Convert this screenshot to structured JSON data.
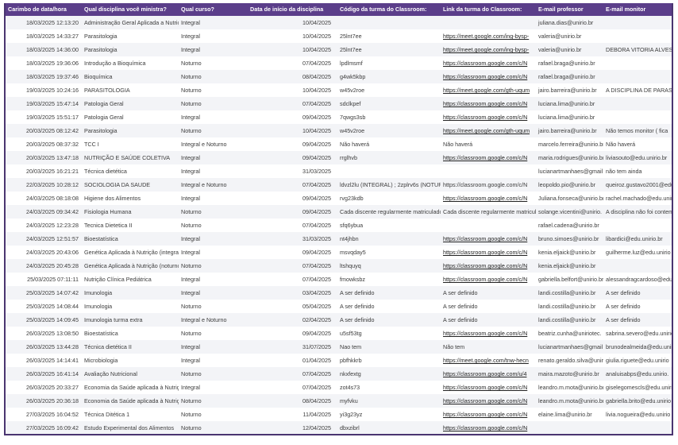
{
  "header": [
    "Carimbo de data/hora",
    "Qual disciplina você ministra?",
    "Qual curso?",
    "Data de início da disciplina",
    "Código da turma do Classroom:",
    "Link da turma do Classroom:",
    "E-mail professor",
    "E-mail monitor"
  ],
  "rows": [
    {
      "cells": [
        "18/03/2025 12:13:20",
        "Administração Geral Aplicada a Nutrição",
        "Integral",
        "10/04/2025",
        "",
        "",
        "juliana.dias@unirio.br",
        ""
      ]
    },
    {
      "cells": [
        "18/03/2025 14:33:27",
        "Parasitologia",
        "Integral",
        "10/04/2025",
        "25lnt7ee",
        "https://meet.google.com/ing-bysp-",
        "valeria@unirio.br",
        ""
      ]
    },
    {
      "cells": [
        "18/03/2025 14:36:00",
        "Parasitologia",
        "Integral",
        "10/04/2025",
        "25lnt7ee",
        "https://meet.google.com/ing-bysp-",
        "valeria@unirio.br",
        "DEBORA VITORIA ALVES"
      ]
    },
    {
      "cells": [
        "18/03/2025 19:36:06",
        "Introdução a Bioquímica",
        "Noturno",
        "07/04/2025",
        "lpdlmsmf",
        "https://classroom.google.com/c/N",
        "rafael.braga@unirio.br",
        ""
      ]
    },
    {
      "cells": [
        "18/03/2025 19:37:46",
        "Bioquímica",
        "Noturno",
        "08/04/2025",
        "g4wk5kbp",
        "https://classroom.google.com/c/N",
        "rafael.braga@unirio.br",
        ""
      ]
    },
    {
      "cells": [
        "19/03/2025 10:24:16",
        "PARASITOLOGIA",
        "Noturno",
        "10/04/2025",
        "w45v2roe",
        "https://meet.google.com/gth-uqum",
        "jairo.barreira@unirio.br",
        "A DISCIPLINA DE PARASITOLOGIA"
      ]
    },
    {
      "cells": [
        "19/03/2025 15:47:14",
        "Patologia Geral",
        "Noturno",
        "07/04/2025",
        "sdclkpef",
        "https://classroom.google.com/c/N",
        "luciana.lima@unirio.br",
        ""
      ]
    },
    {
      "cells": [
        "19/03/2025 15:51:17",
        "Patologia Geral",
        "Integral",
        "09/04/2025",
        "7qwgs3sb",
        "https://classroom.google.com/c/N",
        "luciana.lima@unirio.br",
        ""
      ]
    },
    {
      "cells": [
        "20/03/2025 08:12:42",
        "Parasitologia",
        "Noturno",
        "10/04/2025",
        "w45v2roe",
        "https://meet.google.com/gth-uqum",
        "jairo.barreira@unirio.br",
        "Não temos monitor ( fica"
      ]
    },
    {
      "cells": [
        "20/03/2025 08:37:32",
        "TCC I",
        "Integral e Noturno",
        "09/04/2025",
        "Não haverá",
        "Não haverá",
        "marcelo.ferreira@unirio.br",
        "Não haverá"
      ]
    },
    {
      "cells": [
        "20/03/2025 13:47:18",
        "NUTRIÇÃO E SAÚDE COLETIVA",
        "Integral",
        "09/04/2025",
        " rrglhvb",
        "https://classroom.google.com/c/N",
        "maria.rodrigues@unirio.br",
        "liviasouto@edu.unirio.br"
      ]
    },
    {
      "cells": [
        "20/03/2025 16:21:21",
        "Técnica dietética",
        "Integral",
        "31/03/2025",
        "",
        "",
        "lucianartmanhaes@gmail",
        "não tem ainda"
      ]
    },
    {
      "cells": [
        "22/03/2025 10:28:12",
        "SOCIOLOGIA DA SAUDE",
        "Integral e Noturno",
        "07/04/2025",
        "ldvzl2lu (INTEGRAL) ; 2zplrv6s (NOTURNO)",
        "https://classroom.google.com/c/N",
        "leopoldo.pio@unirio.br",
        "queiroz.gustavo2001@edu"
      ],
      "link_plain": true
    },
    {
      "cells": [
        "24/03/2025 08:18:08",
        "Higiene dos Alimentos",
        "Integral",
        "09/04/2025",
        "rvg23kdb",
        "https://classroom.google.com/c/N",
        "Juliana.fonseca@unirio.br",
        "rachel.machado@edu.unirio"
      ]
    },
    {
      "cells": [
        "24/03/2025 09:34:42",
        "Fisiologia Humana",
        "Noturno",
        "09/04/2025",
        "Cada discente regularmente matriculado",
        "Cada discente regularmente matriculado",
        "solange.vicentini@unirio.",
        "A disciplina não foi contemplada"
      ]
    },
    {
      "cells": [
        "24/03/2025 12:23:28",
        "Tecnica Dietetica II",
        "Noturno",
        "07/04/2025",
        "sfq6ybua",
        "",
        "rafael.cadena@unirio.br",
        ""
      ]
    },
    {
      "cells": [
        "24/03/2025 12:51:57",
        "Bioestatística",
        "Integral",
        "31/03/2025",
        "nt4jhbn",
        "https://classroom.google.com/c/N",
        "bruno.simoes@unirio.br",
        "libardici@edu.unirio.br"
      ]
    },
    {
      "cells": [
        "24/03/2025 20:43:06",
        "Genética Aplicada à Nutrição (integral)",
        "Integral",
        "09/04/2025",
        "msvqday5",
        "https://classroom.google.com/c/N",
        "kenia.eljaick@unirio.br",
        "guilherme.luz@edu.unirio"
      ]
    },
    {
      "cells": [
        "24/03/2025 20:45:28",
        "Genética Aplicada à Nutrição (noturno)",
        "Noturno",
        "07/04/2025",
        "ltshquyq",
        "https://classroom.google.com/c/N",
        "kenia.eljaick@unirio.br",
        ""
      ]
    },
    {
      "cells": [
        "25/03/2025 07:11:11",
        "Nutrição Clínica Pediátrica",
        "Integral",
        "07/04/2025",
        "fmowksbz",
        "https://classroom.google.com/c/N",
        "gabriella.belfort@unirio.br",
        "alessandragcardoso@edu"
      ]
    },
    {
      "cells": [
        "25/03/2025 14:07:42",
        "Imunologia",
        "Integral",
        "03/04/2025",
        "A ser definido",
        "A ser definido",
        "landi.costilla@unirio.br",
        "A ser definido"
      ]
    },
    {
      "cells": [
        "25/03/2025 14:08:44",
        "Imunologia",
        "Noturno",
        "05/04/2025",
        "A ser definido",
        "A ser definido",
        "landi.costilla@unirio.br",
        "A ser definido"
      ]
    },
    {
      "cells": [
        "25/03/2025 14:09:45",
        "Imunologia  turma extra",
        "Integral e Noturno",
        "02/04/2025",
        "A ser definido",
        "A ser definido",
        "landi.costilla@unirio.br",
        "A ser definido"
      ]
    },
    {
      "cells": [
        "26/03/2025 13:08:50",
        "Bioestatística",
        "Noturno",
        "09/04/2025",
        "u5sf53tg",
        "https://classroom.google.com/c/N",
        "beatriz.cunha@uniriotec.",
        "sabrina.severo@edu.unirio"
      ]
    },
    {
      "cells": [
        "26/03/2025 13:44:28",
        "Técnica dietética II",
        "Integral",
        "31/07/2025",
        "Nao tem",
        "Não tem",
        "lucianartmanhaes@gmail",
        "brunodealmeida@edu.unirio"
      ]
    },
    {
      "cells": [
        "26/03/2025 14:14:41",
        "Microbiologia",
        "Integral",
        "01/04/2025",
        "pbfhkkrb",
        "https://meet.google.com/tnw-hecn",
        "renato.geraldo.silva@unirio",
        "giulia.riguete@edu.unirio"
      ]
    },
    {
      "cells": [
        "26/03/2025 16:41:14",
        "Avaliação Nutricional",
        "Noturno",
        "07/04/2025",
        "nkxfextg",
        "https://classroom.google.com/u/4",
        "maira.mazoto@unirio.br",
        "analuisabps@edu.unirio."
      ]
    },
    {
      "cells": [
        "26/03/2025 20:33:27",
        "Economia da Saúde aplicada à Nutrição",
        "Integral",
        "07/04/2025",
        "zot4s73",
        "https://classroom.google.com/c/N",
        "leandro.m.mota@unirio.br",
        "giselegomescls@edu.unirio"
      ]
    },
    {
      "cells": [
        "26/03/2025 20:36:18",
        "Economia da Saúde aplicada à Nutrição",
        "Noturno",
        "08/04/2025",
        "myfvku",
        "https://classroom.google.com/c/N",
        "leandro.m.mota@unirio.br",
        "gabriella.brito@edu.unirio"
      ]
    },
    {
      "cells": [
        "27/03/2025 16:04:52",
        "Técnica Ditética 1",
        "Noturno",
        "11/04/2025",
        "yi3g23yz",
        "https://classroom.google.com/c/N",
        "elaine.lima@unirio.br",
        "livia.nogueira@edu.unirio"
      ]
    },
    {
      "cells": [
        "27/03/2025 16:09:42",
        "Estudo Experimental dos Alimentos",
        "Noturno",
        "12/04/2025",
        "dbxzibrl",
        "https://classroom.google.com/c/N",
        "",
        ""
      ]
    }
  ],
  "colors": {
    "header_bg": "#5b3e8a",
    "border": "#4a3570",
    "stripe": "#f3f4f7"
  }
}
